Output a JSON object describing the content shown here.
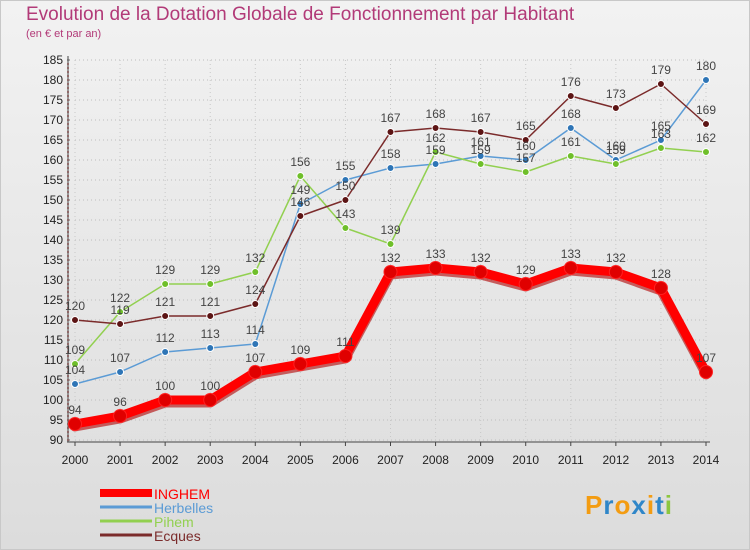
{
  "chart_data": {
    "type": "line",
    "title": "Evolution de la Dotation Globale de Fonctionnement par Habitant",
    "subtitle": "(en € et par an)",
    "x": [
      "2000",
      "2001",
      "2002",
      "2003",
      "2004",
      "2005",
      "2006",
      "2007",
      "2008",
      "2009",
      "2010",
      "2011",
      "2012",
      "2013",
      "2014"
    ],
    "ylim": [
      90,
      185
    ],
    "ystep": 5,
    "series": [
      {
        "name": "Herbelles",
        "color": "#5b9bd5",
        "dot": "#2e75b6",
        "width": 1.5,
        "values": [
          104,
          107,
          112,
          113,
          114,
          149,
          155,
          158,
          159,
          161,
          160,
          168,
          160,
          165,
          180
        ],
        "labels": [
          "104",
          "107",
          "112",
          "113",
          "114",
          "149",
          "155",
          "158",
          "159",
          "161",
          "160",
          "168",
          "160",
          "165",
          "180"
        ]
      },
      {
        "name": "Pihem",
        "color": "#92d050",
        "dot": "#6fbf2a",
        "width": 1.5,
        "values": [
          109,
          122,
          129,
          129,
          132,
          156,
          143,
          139,
          162,
          159,
          157,
          161,
          159,
          163,
          162
        ],
        "labels": [
          "109",
          "122",
          "129",
          "129",
          "132",
          "156",
          "143",
          "139",
          "162",
          "159",
          "157",
          "161",
          "159",
          "163",
          "162"
        ]
      },
      {
        "name": "Ecques",
        "color": "#7b2b2b",
        "dot": "#5c1414",
        "width": 1.5,
        "values": [
          120,
          119,
          121,
          121,
          124,
          146,
          150,
          167,
          168,
          167,
          165,
          176,
          173,
          179,
          169
        ],
        "labels": [
          "120",
          "119",
          "121",
          "121",
          "124",
          "146",
          "150",
          "167",
          "168",
          "167",
          "165",
          "176",
          "173",
          "179",
          "169"
        ]
      },
      {
        "name": "INGHEM",
        "color": "#ff0000",
        "dot": "#e00000",
        "width": 9,
        "values": [
          94,
          96,
          100,
          100,
          107,
          109,
          111,
          132,
          133,
          132,
          129,
          133,
          132,
          128,
          107
        ],
        "labels": [
          "94",
          "96",
          "100",
          "100",
          "107",
          "109",
          "111",
          "132",
          "133",
          "132",
          "129",
          "133",
          "132",
          "128",
          "107"
        ]
      }
    ],
    "legend": [
      "INGHEM",
      "Herbelles",
      "Pihem",
      "Ecques"
    ]
  },
  "logo": {
    "text": "Proxiti",
    "colors": [
      "#f39c12",
      "#2f86c8",
      "#f39c12",
      "#2f86c8",
      "#f39c12",
      "#2f86c8",
      "#8cc63f"
    ]
  }
}
